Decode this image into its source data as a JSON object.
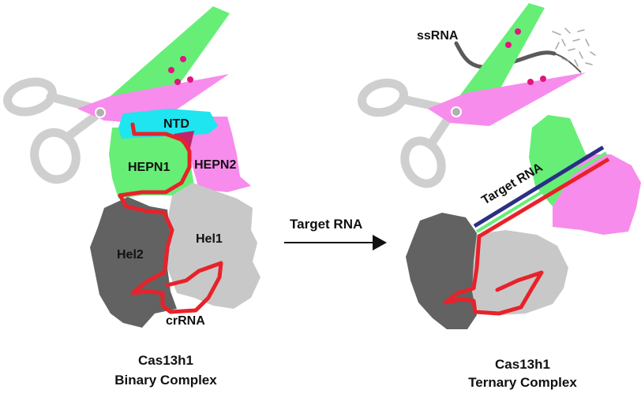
{
  "left_panel": {
    "domains": {
      "ntd": "NTD",
      "hepn1": "HEPN1",
      "hepn2": "HEPN2",
      "hel2": "Hel2",
      "hel1": "Hel1"
    },
    "crrna_label": "crRNA",
    "caption_line1": "Cas13h1",
    "caption_line2": "Binary Complex"
  },
  "transition": {
    "label": "Target RNA"
  },
  "right_panel": {
    "ssrna_label": "ssRNA",
    "target_rna_label": "Target RNA",
    "caption_line1": "Cas13h1",
    "caption_line2": "Ternary Complex"
  },
  "colors": {
    "ntd": "#1EE5F0",
    "hepn1": "#66EE77",
    "hepn2": "#F78CEC",
    "hel2": "#626262",
    "hel1": "#C8C8C8",
    "crrna": "#E8222A",
    "target_rna": "#2B2F86",
    "scissors_handle": "#CFCFCF",
    "blade_dots": "#E0157E",
    "linker": "#C0246A"
  }
}
